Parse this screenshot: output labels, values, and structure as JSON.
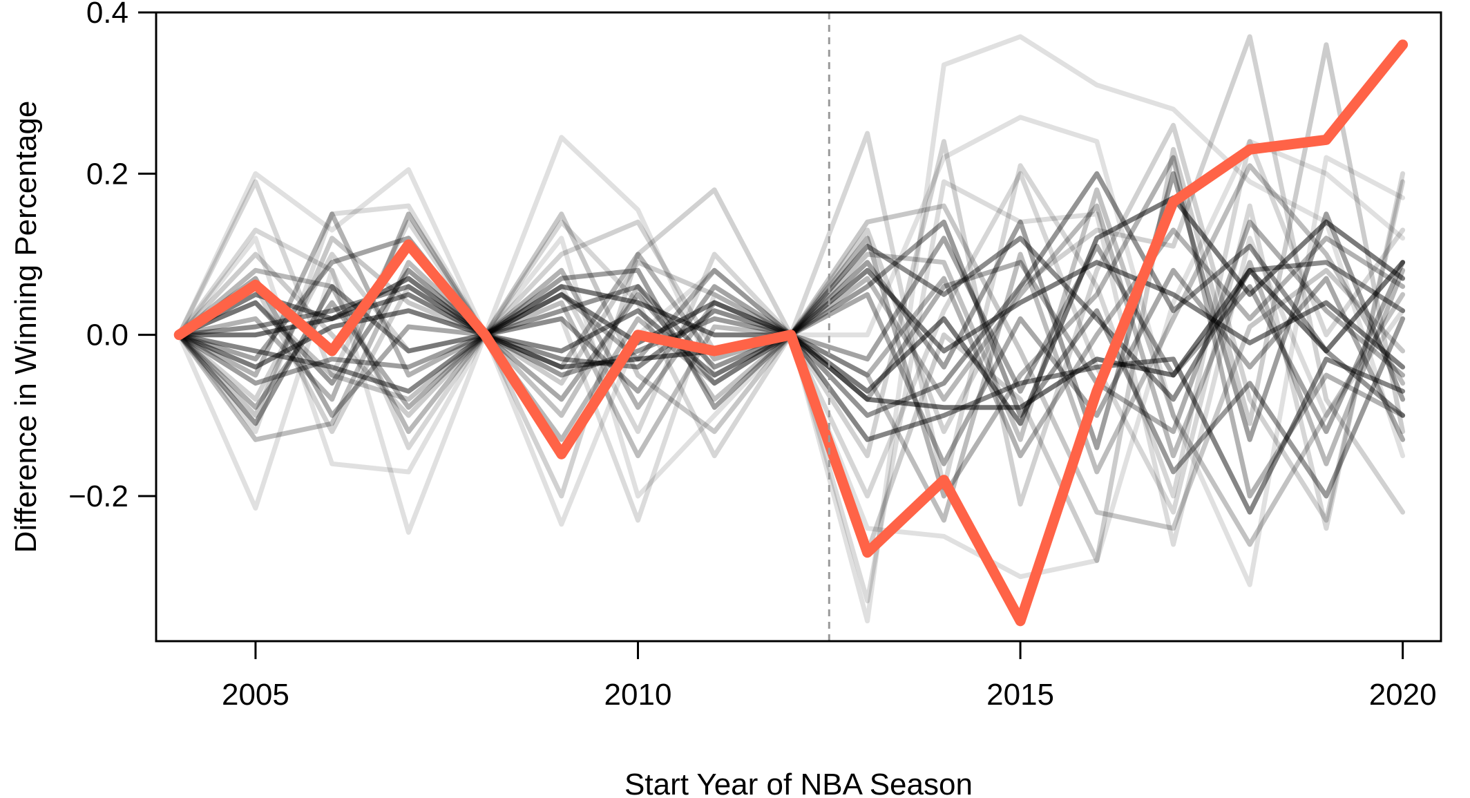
{
  "chart_data": {
    "type": "line",
    "xlabel": "Start Year of NBA Season",
    "ylabel": "Difference in Winning Percentage",
    "xlim": [
      2003.7,
      2020.5
    ],
    "ylim": [
      -0.38,
      0.4
    ],
    "x_ticks": [
      2005,
      2010,
      2015,
      2020
    ],
    "x_tick_labels": [
      "2005",
      "2010",
      "2015",
      "2020"
    ],
    "y_ticks": [
      -0.2,
      0.0,
      0.2,
      0.4
    ],
    "y_tick_labels": [
      "−0.2",
      "0.0",
      "0.2",
      "0.4"
    ],
    "reference_line": {
      "x": 2012.5,
      "style": "dashed",
      "color": "#9a9a9a"
    },
    "grid": false,
    "x": [
      2004,
      2005,
      2006,
      2007,
      2008,
      2009,
      2010,
      2011,
      2012,
      2013,
      2014,
      2015,
      2016,
      2017,
      2018,
      2019,
      2020
    ],
    "highlight_color": "#ff6347",
    "background_color": "#000000",
    "highlight": {
      "values": [
        0.0,
        0.062,
        -0.02,
        0.112,
        0.0,
        -0.148,
        0.0,
        -0.02,
        0.0,
        -0.27,
        -0.18,
        -0.355,
        -0.07,
        0.165,
        0.23,
        0.242,
        0.36
      ]
    },
    "background_series": [
      {
        "alpha": 0.12,
        "values": [
          0.0,
          -0.215,
          0.08,
          -0.245,
          0.0,
          0.245,
          0.155,
          -0.05,
          0.0,
          -0.355,
          0.335,
          0.37,
          0.31,
          0.28,
          0.19,
          0.14,
          -0.15
        ]
      },
      {
        "alpha": 0.12,
        "values": [
          0.0,
          0.2,
          0.13,
          0.205,
          0.0,
          -0.235,
          0.0,
          0.08,
          0.0,
          0.0,
          0.22,
          0.27,
          0.24,
          -0.1,
          -0.31,
          0.22,
          0.17
        ]
      },
      {
        "alpha": 0.12,
        "values": [
          0.0,
          0.12,
          -0.16,
          -0.17,
          0.0,
          0.12,
          -0.2,
          -0.1,
          0.0,
          -0.24,
          -0.25,
          -0.3,
          -0.28,
          0.04,
          0.24,
          0.2,
          0.12
        ]
      },
      {
        "alpha": 0.14,
        "values": [
          0.0,
          -0.12,
          0.15,
          0.16,
          0.0,
          0.02,
          -0.23,
          0.05,
          0.0,
          -0.33,
          0.19,
          0.14,
          0.15,
          -0.26,
          0.12,
          -0.1,
          0.03
        ]
      },
      {
        "alpha": 0.16,
        "values": [
          0.0,
          0.19,
          -0.05,
          0.14,
          0.0,
          0.14,
          0.04,
          -0.15,
          0.0,
          -0.2,
          0.03,
          0.2,
          -0.04,
          -0.22,
          0.16,
          -0.24,
          0.2
        ]
      },
      {
        "alpha": 0.16,
        "values": [
          0.0,
          0.13,
          0.08,
          -0.14,
          0.0,
          0.06,
          -0.12,
          0.1,
          0.0,
          0.25,
          -0.19,
          0.21,
          0.06,
          -0.2,
          0.24,
          0.0,
          0.13
        ]
      },
      {
        "alpha": 0.18,
        "values": [
          0.0,
          -0.08,
          0.1,
          -0.02,
          0.0,
          -0.2,
          0.1,
          0.18,
          0.0,
          -0.15,
          0.24,
          -0.21,
          0.08,
          0.26,
          -0.08,
          -0.23,
          0.19
        ]
      },
      {
        "alpha": 0.18,
        "values": [
          0.0,
          0.06,
          -0.12,
          0.06,
          0.0,
          0.1,
          0.14,
          -0.02,
          0.0,
          0.13,
          -0.12,
          0.06,
          0.13,
          0.11,
          0.37,
          -0.08,
          -0.22
        ]
      },
      {
        "alpha": 0.2,
        "values": [
          0.0,
          0.1,
          0.0,
          -0.1,
          0.0,
          -0.06,
          0.09,
          0.05,
          0.0,
          -0.27,
          0.0,
          -0.08,
          -0.28,
          0.23,
          -0.11,
          0.36,
          -0.12
        ]
      },
      {
        "alpha": 0.22,
        "values": [
          0.0,
          -0.1,
          0.12,
          0.04,
          0.0,
          0.15,
          -0.05,
          -0.12,
          0.0,
          0.14,
          0.16,
          -0.02,
          -0.22,
          -0.24,
          0.01,
          0.08,
          -0.02
        ]
      },
      {
        "alpha": 0.24,
        "values": [
          0.0,
          0.04,
          -0.05,
          -0.08,
          0.0,
          -0.1,
          0.06,
          -0.08,
          0.0,
          0.1,
          0.09,
          -0.13,
          0.18,
          -0.1,
          -0.26,
          -0.1,
          0.05
        ]
      },
      {
        "alpha": 0.26,
        "values": [
          0.0,
          -0.13,
          -0.11,
          0.09,
          0.0,
          0.04,
          -0.15,
          0.01,
          0.0,
          -0.05,
          -0.23,
          0.1,
          -0.17,
          0.02,
          0.21,
          0.1,
          -0.06
        ]
      },
      {
        "alpha": 0.28,
        "values": [
          0.0,
          0.08,
          0.06,
          -0.12,
          0.0,
          -0.13,
          0.02,
          -0.06,
          0.0,
          0.07,
          -0.08,
          0.05,
          0.16,
          -0.15,
          0.09,
          -0.16,
          0.08
        ]
      },
      {
        "alpha": 0.3,
        "values": [
          0.0,
          -0.05,
          0.15,
          -0.05,
          0.0,
          0.08,
          -0.09,
          0.04,
          0.0,
          0.12,
          -0.2,
          -0.05,
          0.05,
          0.22,
          -0.2,
          -0.05,
          -0.1
        ]
      },
      {
        "alpha": 0.3,
        "values": [
          0.0,
          0.02,
          -0.08,
          0.15,
          0.0,
          -0.04,
          0.1,
          -0.03,
          0.0,
          -0.05,
          0.07,
          -0.15,
          0.0,
          0.13,
          0.02,
          0.12,
          0.06
        ]
      },
      {
        "alpha": 0.32,
        "values": [
          0.0,
          -0.09,
          0.04,
          -0.09,
          0.0,
          0.05,
          -0.03,
          0.08,
          0.0,
          -0.08,
          0.06,
          0.09,
          -0.06,
          -0.12,
          0.14,
          0.03,
          -0.05
        ]
      },
      {
        "alpha": 0.34,
        "values": [
          0.0,
          0.07,
          -0.1,
          0.01,
          0.0,
          -0.08,
          0.05,
          -0.06,
          0.0,
          0.05,
          -0.16,
          0.02,
          -0.1,
          0.08,
          -0.04,
          0.07,
          -0.13
        ]
      },
      {
        "alpha": 0.36,
        "values": [
          0.0,
          -0.03,
          0.09,
          0.12,
          0.0,
          0.02,
          -0.07,
          0.06,
          0.0,
          -0.03,
          0.12,
          -0.07,
          0.11,
          -0.05,
          0.06,
          -0.12,
          0.09
        ]
      },
      {
        "alpha": 0.38,
        "values": [
          0.0,
          -0.06,
          -0.03,
          -0.04,
          0.0,
          0.07,
          0.08,
          -0.09,
          0.0,
          0.09,
          -0.04,
          0.14,
          -0.14,
          0.2,
          -0.13,
          0.15,
          -0.08
        ]
      },
      {
        "alpha": 0.4,
        "values": [
          0.0,
          0.04,
          -0.06,
          0.08,
          0.0,
          -0.05,
          -0.02,
          0.02,
          0.0,
          0.06,
          0.14,
          -0.1,
          0.03,
          -0.17,
          -0.06,
          -0.2,
          0.02
        ]
      },
      {
        "alpha": 0.42,
        "values": [
          0.0,
          -0.11,
          0.06,
          -0.02,
          0.0,
          0.03,
          0.06,
          -0.04,
          0.0,
          -0.1,
          -0.06,
          0.06,
          0.2,
          0.03,
          0.11,
          -0.02,
          -0.1
        ]
      },
      {
        "alpha": 0.45,
        "values": [
          0.0,
          0.01,
          0.03,
          0.06,
          0.0,
          -0.03,
          -0.04,
          0.03,
          0.0,
          0.11,
          0.05,
          0.12,
          0.02,
          -0.08,
          0.08,
          0.09,
          0.03
        ]
      },
      {
        "alpha": 0.48,
        "values": [
          0.0,
          -0.02,
          -0.04,
          -0.07,
          0.0,
          -0.02,
          0.03,
          -0.05,
          0.0,
          -0.13,
          -0.1,
          -0.06,
          -0.04,
          -0.03,
          -0.22,
          -0.03,
          -0.07
        ]
      },
      {
        "alpha": 0.5,
        "values": [
          0.0,
          0.05,
          0.02,
          0.05,
          0.0,
          0.05,
          -0.01,
          0.04,
          0.0,
          0.08,
          -0.02,
          0.04,
          0.09,
          0.05,
          -0.01,
          0.04,
          -0.04
        ]
      },
      {
        "alpha": 0.52,
        "values": [
          0.0,
          -0.04,
          0.01,
          0.03,
          0.0,
          0.06,
          0.04,
          0.0,
          0.0,
          -0.07,
          0.02,
          -0.11,
          0.12,
          0.17,
          0.05,
          0.14,
          0.07
        ]
      },
      {
        "alpha": 0.55,
        "values": [
          0.0,
          0.0,
          0.02,
          0.07,
          0.0,
          -0.04,
          -0.03,
          -0.02,
          0.0,
          -0.08,
          -0.09,
          -0.09,
          -0.03,
          -0.05,
          0.08,
          -0.02,
          0.09
        ]
      }
    ]
  }
}
